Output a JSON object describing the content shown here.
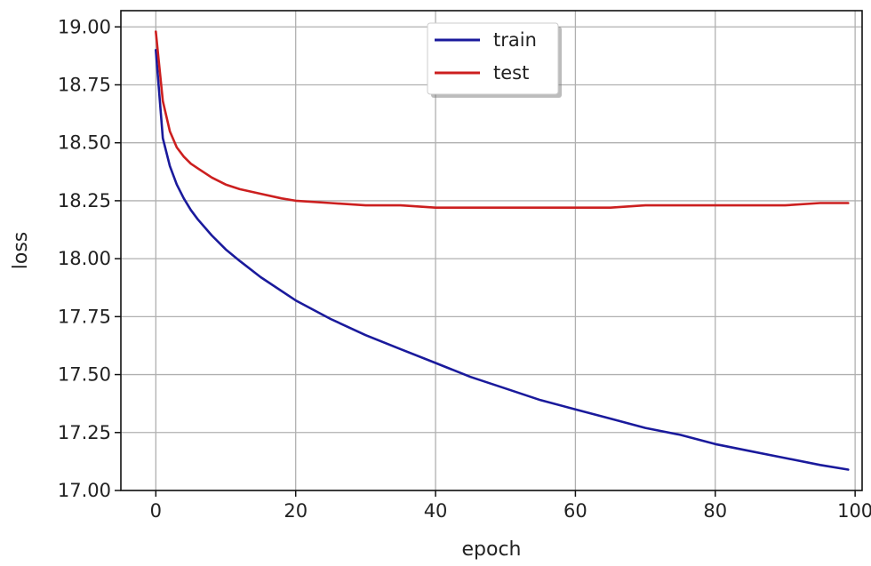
{
  "chart_data": {
    "type": "line",
    "title": "",
    "xlabel": "epoch",
    "ylabel": "loss",
    "xlim": [
      -5,
      101
    ],
    "ylim": [
      17.0,
      19.07
    ],
    "x_ticks": [
      0,
      20,
      40,
      60,
      80,
      100
    ],
    "y_ticks": [
      17.0,
      17.25,
      17.5,
      17.75,
      18.0,
      18.25,
      18.5,
      18.75,
      19.0
    ],
    "y_tick_labels": [
      "17.00",
      "17.25",
      "17.50",
      "17.75",
      "18.00",
      "18.25",
      "18.50",
      "18.75",
      "19.00"
    ],
    "grid": true,
    "legend_position": "top-center",
    "series": [
      {
        "name": "train",
        "color": "#1a1a9c",
        "x": [
          0,
          1,
          2,
          3,
          4,
          5,
          6,
          8,
          10,
          12,
          15,
          20,
          25,
          30,
          35,
          40,
          45,
          50,
          55,
          60,
          65,
          70,
          75,
          80,
          85,
          90,
          95,
          99
        ],
        "y": [
          18.9,
          18.52,
          18.4,
          18.32,
          18.26,
          18.21,
          18.17,
          18.1,
          18.04,
          17.99,
          17.92,
          17.82,
          17.74,
          17.67,
          17.61,
          17.55,
          17.49,
          17.44,
          17.39,
          17.35,
          17.31,
          17.27,
          17.24,
          17.2,
          17.17,
          17.14,
          17.11,
          17.09
        ]
      },
      {
        "name": "test",
        "color": "#cc1f1f",
        "x": [
          0,
          1,
          2,
          3,
          4,
          5,
          6,
          8,
          10,
          12,
          15,
          18,
          20,
          25,
          30,
          35,
          40,
          45,
          50,
          55,
          60,
          65,
          70,
          75,
          80,
          85,
          90,
          95,
          99
        ],
        "y": [
          18.98,
          18.68,
          18.55,
          18.48,
          18.44,
          18.41,
          18.39,
          18.35,
          18.32,
          18.3,
          18.28,
          18.26,
          18.25,
          18.24,
          18.23,
          18.23,
          18.22,
          18.22,
          18.22,
          18.22,
          18.22,
          18.22,
          18.23,
          18.23,
          18.23,
          18.23,
          18.23,
          18.24,
          18.24
        ]
      }
    ]
  }
}
